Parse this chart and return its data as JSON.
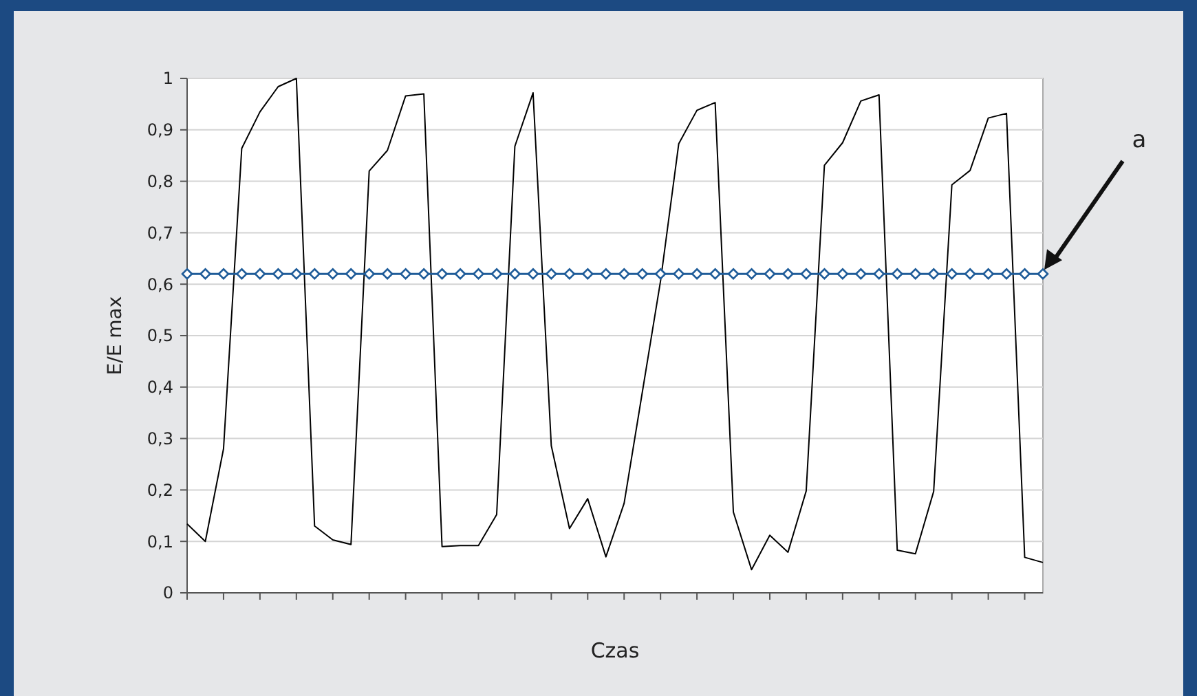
{
  "chart_data": {
    "type": "line",
    "xlabel": "Czas",
    "ylabel": "E/E max",
    "categories": [
      null,
      null,
      null,
      null,
      null,
      null,
      null,
      null,
      null,
      null,
      null,
      null,
      null,
      null,
      null,
      null,
      null,
      null,
      null,
      null,
      null,
      null,
      null,
      null,
      null,
      null,
      null,
      null,
      null,
      null,
      null,
      null,
      null,
      null,
      null,
      null,
      null,
      null,
      null,
      null,
      null,
      null,
      null,
      null,
      null,
      null,
      null,
      null
    ],
    "series": [
      {
        "color": "#000000",
        "marker": "none",
        "values": [
          0.134,
          0.1,
          0.28,
          0.864,
          0.935,
          0.984,
          1.0,
          0.13,
          0.103,
          0.094,
          0.82,
          0.86,
          0.966,
          0.97,
          0.09,
          0.092,
          0.092,
          0.152,
          0.868,
          0.972,
          0.286,
          0.125,
          0.183,
          0.07,
          0.174,
          0.39,
          0.606,
          0.873,
          0.938,
          0.953,
          0.157,
          0.045,
          0.112,
          0.079,
          0.198,
          0.831,
          0.875,
          0.956,
          0.968,
          0.083,
          0.076,
          0.197,
          0.793,
          0.821,
          0.923,
          0.932,
          0.069,
          0.059
        ]
      },
      {
        "color": "#1f5c99",
        "marker": "diamond",
        "values": [
          0.62,
          0.62,
          0.62,
          0.62,
          0.62,
          0.62,
          0.62,
          0.62,
          0.62,
          0.62,
          0.62,
          0.62,
          0.62,
          0.62,
          0.62,
          0.62,
          0.62,
          0.62,
          0.62,
          0.62,
          0.62,
          0.62,
          0.62,
          0.62,
          0.62,
          0.62,
          0.62,
          0.62,
          0.62,
          0.62,
          0.62,
          0.62,
          0.62,
          0.62,
          0.62,
          0.62,
          0.62,
          0.62,
          0.62,
          0.62,
          0.62,
          0.62,
          0.62,
          0.62,
          0.62,
          0.62,
          0.62,
          0.62
        ]
      }
    ],
    "ylim": [
      0,
      1
    ],
    "yticks": [
      0,
      {
        "value": 0.1,
        "label": "0,1"
      },
      {
        "value": 0.2,
        "label": "0,2"
      },
      {
        "value": 0.3,
        "label": "0,3"
      },
      {
        "value": 0.4,
        "label": "0,4"
      },
      {
        "value": 0.5,
        "label": "0,5"
      },
      {
        "value": 0.6,
        "label": "0,6"
      },
      {
        "value": 0.7,
        "label": "0,7"
      },
      {
        "value": 0.8,
        "label": "0,8"
      },
      {
        "value": 0.9,
        "label": "0,9"
      },
      1
    ],
    "grid": "y",
    "tick_labels": "y",
    "line_style": "solid",
    "annotations": [
      "a"
    ]
  }
}
